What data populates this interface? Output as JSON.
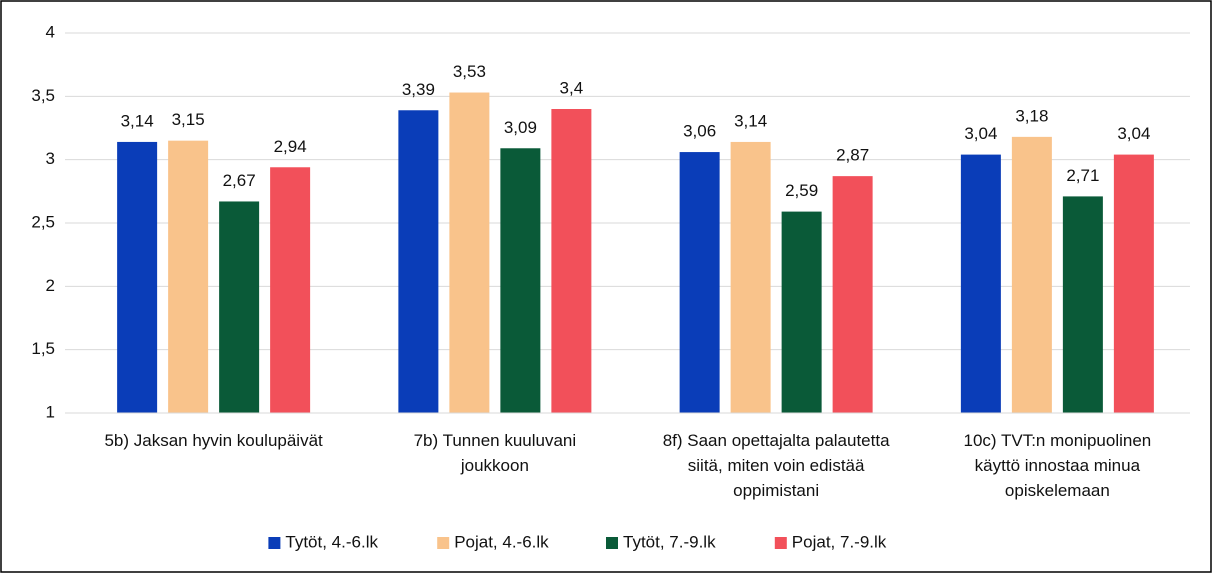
{
  "chart_data": {
    "type": "bar",
    "categories": [
      "5b) Jaksan hyvin koulupäivät",
      "7b) Tunnen kuuluvani joukkoon",
      "8f) Saan opettajalta palautetta siitä, miten voin edistää oppimistani",
      "10c) TVT:n monipuolinen käyttö innostaa minua opiskelemaan"
    ],
    "series": [
      {
        "name": "Tytöt, 4.-6.lk",
        "color": "#0a3db8",
        "values": [
          3.14,
          3.39,
          3.06,
          3.04
        ],
        "value_labels": [
          "3,14",
          "3,39",
          "3,06",
          "3,04"
        ]
      },
      {
        "name": "Pojat, 4.-6.lk",
        "color": "#f9c38b",
        "values": [
          3.15,
          3.53,
          3.14,
          3.18
        ],
        "value_labels": [
          "3,15",
          "3,53",
          "3,14",
          "3,18"
        ]
      },
      {
        "name": "Tytöt, 7.-9.lk",
        "color": "#0a5a38",
        "values": [
          2.67,
          3.09,
          2.59,
          2.71
        ],
        "value_labels": [
          "2,67",
          "3,09",
          "2,59",
          "2,71"
        ]
      },
      {
        "name": "Pojat, 7.-9.lk",
        "color": "#f2505a",
        "values": [
          2.94,
          3.4,
          2.87,
          3.04
        ],
        "value_labels": [
          "2,94",
          "3,4",
          "2,87",
          "3,04"
        ]
      }
    ],
    "ylim": [
      1,
      4
    ],
    "yticks": [
      1,
      {
        "value": 1.5,
        "label": "1,5"
      },
      2,
      {
        "value": 2.5,
        "label": "2,5"
      },
      3,
      {
        "value": 3.5,
        "label": "3,5"
      },
      4
    ],
    "grid": true,
    "legend": "bottom"
  }
}
